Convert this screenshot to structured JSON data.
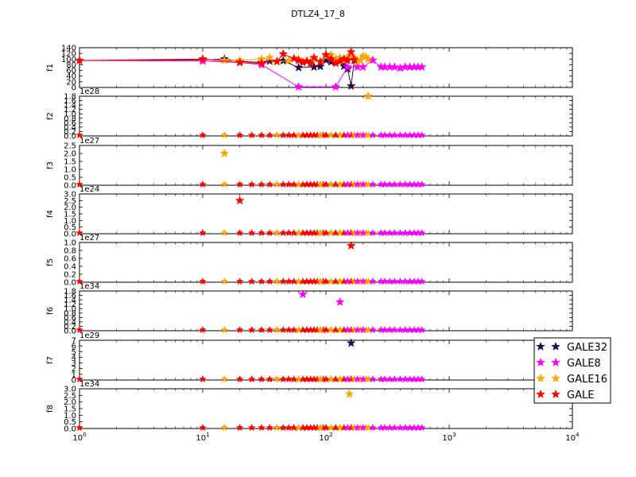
{
  "chart_data": {
    "type": "scatter",
    "title": "DTLZ4_17_8",
    "xscale": "log",
    "xlim": [
      1,
      10000
    ],
    "xticks": [
      "10^0",
      "10^1",
      "10^2",
      "10^3",
      "10^4"
    ],
    "legend": {
      "placement": "right",
      "entries": [
        {
          "name": "GALE32",
          "color": "#2a0a4a"
        },
        {
          "name": "GALE8",
          "color": "#ff00ff"
        },
        {
          "name": "GALE16",
          "color": "#ffa500"
        },
        {
          "name": "GALE",
          "color": "#ff0000"
        }
      ]
    },
    "panels": [
      {
        "ylabel": "f1",
        "ylim": [
          0,
          140
        ],
        "exponent": "",
        "yticks": [
          "0",
          "20",
          "40",
          "60",
          "80",
          "100",
          "120",
          "140"
        ],
        "series": [
          {
            "name": "GALE32",
            "color": "#2a0a4a",
            "x": [
              1,
              10,
              15,
              20,
              30,
              35,
              45,
              60,
              80,
              90,
              100,
              110,
              120,
              130,
              140,
              150,
              160,
              170
            ],
            "y": [
              95,
              97,
              100,
              92,
              88,
              93,
              94,
              70,
              72,
              74,
              96,
              90,
              94,
              100,
              75,
              65,
              5,
              95
            ]
          },
          {
            "name": "GALE8",
            "color": "#ff00ff",
            "x": [
              1,
              10,
              20,
              30,
              60,
              120,
              150,
              180,
              200,
              240,
              280,
              300,
              330,
              360,
              400,
              440,
              480,
              520,
              560,
              600
            ],
            "y": [
              95,
              93,
              88,
              80,
              2,
              2,
              72,
              72,
              72,
              96,
              72,
              72,
              72,
              72,
              68,
              72,
              72,
              72,
              72,
              72
            ]
          },
          {
            "name": "GALE16",
            "color": "#ffa500",
            "x": [
              1,
              10,
              15,
              20,
              30,
              35,
              40,
              50,
              60,
              70,
              80,
              90,
              100,
              110,
              120,
              130,
              140,
              150,
              160,
              170,
              180,
              190,
              200,
              210,
              220
            ],
            "y": [
              95,
              100,
              95,
              95,
              100,
              105,
              90,
              95,
              100,
              95,
              100,
              92,
              110,
              115,
              100,
              105,
              95,
              108,
              112,
              105,
              90,
              95,
              110,
              108,
              100
            ]
          },
          {
            "name": "GALE",
            "color": "#ff0000",
            "x": [
              1,
              10,
              20,
              30,
              40,
              45,
              55,
              60,
              65,
              70,
              75,
              80,
              90,
              100,
              110,
              120,
              130,
              140,
              150,
              160,
              170
            ],
            "y": [
              95,
              100,
              88,
              85,
              92,
              118,
              102,
              95,
              88,
              92,
              85,
              105,
              90,
              115,
              100,
              85,
              92,
              100,
              95,
              125,
              98
            ]
          }
        ]
      },
      {
        "ylabel": "f2",
        "ylim": [
          0,
          1.8
        ],
        "exponent": "1e28",
        "yticks": [
          "0.0",
          "0.2",
          "0.4",
          "0.6",
          "0.8",
          "1.0",
          "1.2",
          "1.4",
          "1.6",
          "1.8"
        ],
        "series": [
          {
            "name": "GALE16",
            "color": "#ffa500",
            "x": [
              220
            ],
            "y": [
              1.8
            ]
          }
        ]
      },
      {
        "ylabel": "f3",
        "ylim": [
          0,
          2.5
        ],
        "exponent": "1e27",
        "yticks": [
          "0.0",
          "0.5",
          "1.0",
          "1.5",
          "2.0",
          "2.5"
        ],
        "series": [
          {
            "name": "GALE16",
            "color": "#ffa500",
            "x": [
              15
            ],
            "y": [
              2.0
            ]
          }
        ]
      },
      {
        "ylabel": "f4",
        "ylim": [
          0,
          3.0
        ],
        "exponent": "1e24",
        "yticks": [
          "0.0",
          "0.5",
          "1.0",
          "1.5",
          "2.0",
          "2.5",
          "3.0"
        ],
        "series": [
          {
            "name": "GALE",
            "color": "#ff0000",
            "x": [
              20
            ],
            "y": [
              2.5
            ]
          }
        ]
      },
      {
        "ylabel": "f5",
        "ylim": [
          0,
          1.0
        ],
        "exponent": "1e27",
        "yticks": [
          "0.0",
          "0.2",
          "0.4",
          "0.6",
          "0.8",
          "1.0"
        ],
        "series": [
          {
            "name": "GALE",
            "color": "#ff0000",
            "x": [
              160
            ],
            "y": [
              0.92
            ]
          }
        ]
      },
      {
        "ylabel": "f6",
        "ylim": [
          0,
          1.8
        ],
        "exponent": "1e34",
        "yticks": [
          "0.0",
          "0.2",
          "0.4",
          "0.6",
          "0.8",
          "1.0",
          "1.2",
          "1.4",
          "1.6",
          "1.8"
        ],
        "series": [
          {
            "name": "GALE8",
            "color": "#ff00ff",
            "x": [
              65,
              130
            ],
            "y": [
              1.65,
              1.3
            ]
          }
        ]
      },
      {
        "ylabel": "f7",
        "ylim": [
          0,
          7
        ],
        "exponent": "1e29",
        "yticks": [
          "0",
          "1",
          "2",
          "3",
          "4",
          "5",
          "6",
          "7"
        ],
        "series": [
          {
            "name": "GALE32",
            "color": "#2a0a4a",
            "x": [
              160
            ],
            "y": [
              6.5
            ]
          }
        ]
      },
      {
        "ylabel": "f8",
        "ylim": [
          0,
          3.0
        ],
        "exponent": "1e34",
        "yticks": [
          "0.0",
          "0.5",
          "1.0",
          "1.5",
          "2.0",
          "2.5",
          "3.0"
        ],
        "series": [
          {
            "name": "GALE16",
            "color": "#ffa500",
            "x": [
              155
            ],
            "y": [
              2.6
            ]
          }
        ]
      }
    ]
  }
}
